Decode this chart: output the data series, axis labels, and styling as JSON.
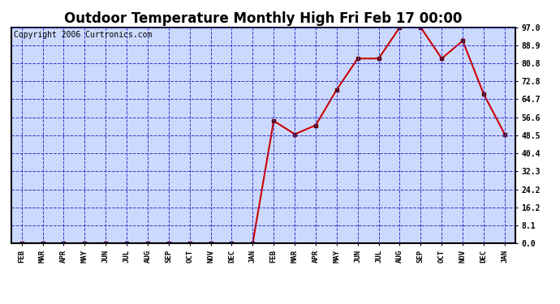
{
  "title": "Outdoor Temperature Monthly High Fri Feb 17 00:00",
  "copyright": "Copyright 2006 Curtronics.com",
  "x_labels": [
    "FEB",
    "MAR",
    "APR",
    "MAY",
    "JUN",
    "JUL",
    "AUG",
    "SEP",
    "OCT",
    "NOV",
    "DEC",
    "JAN",
    "FEB",
    "MAR",
    "APR",
    "MAY",
    "JUN",
    "JUL",
    "AUG",
    "SEP",
    "OCT",
    "NOV",
    "DEC",
    "JAN"
  ],
  "y_values": [
    0.0,
    0.0,
    0.0,
    0.0,
    0.0,
    0.0,
    0.0,
    0.0,
    0.0,
    0.0,
    0.0,
    0.0,
    55.0,
    49.0,
    53.0,
    69.0,
    83.0,
    83.0,
    97.0,
    97.0,
    83.0,
    91.0,
    67.0,
    49.0
  ],
  "y_ticks": [
    0.0,
    8.1,
    16.2,
    24.2,
    32.3,
    40.4,
    48.5,
    56.6,
    64.7,
    72.8,
    80.8,
    88.9,
    97.0
  ],
  "ylim": [
    0.0,
    97.0
  ],
  "line_color": "#cc0000",
  "marker_color": "#660000",
  "bg_color": "#ffffff",
  "plot_bg_color": "#ccd9ff",
  "grid_color": "#3333cc",
  "title_fontsize": 12,
  "copyright_fontsize": 7
}
